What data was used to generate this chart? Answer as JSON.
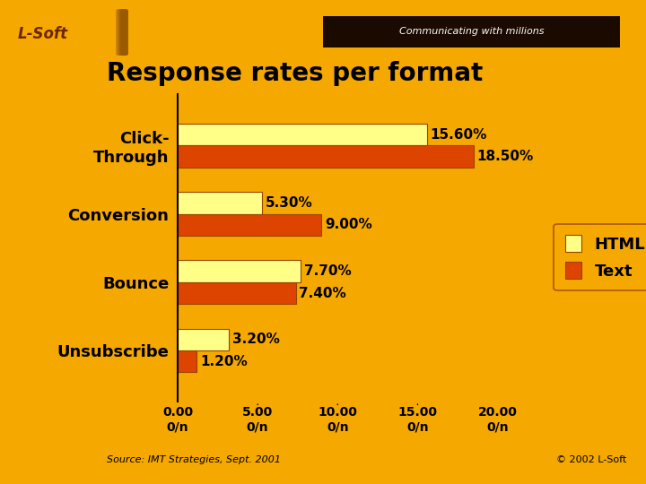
{
  "title": "Response rates per format",
  "categories": [
    "Click-\nThrough",
    "Conversion",
    "Bounce",
    "Unsubscribe"
  ],
  "html_values": [
    15.6,
    5.3,
    7.7,
    3.2
  ],
  "text_values": [
    18.5,
    9.0,
    7.4,
    1.2
  ],
  "html_labels": [
    "15.60%",
    "5.30%",
    "7.70%",
    "3.20%"
  ],
  "text_labels": [
    "18.50%",
    "9.00%",
    "7.40%",
    "1.20%"
  ],
  "html_color": "#FFFF88",
  "text_color": "#DD4400",
  "bg_color": "#F5A800",
  "bar_edge_color": "#994400",
  "xlim": [
    0,
    21
  ],
  "xticks": [
    0.0,
    5.0,
    10.0,
    15.0,
    20.0
  ],
  "xtick_labels": [
    "0.00",
    "5.00",
    "10.00",
    "15.00",
    "20.00"
  ],
  "xtick_sublabels": [
    "0/n",
    "0/n",
    "0/n",
    "0/n",
    "0/n"
  ],
  "source_text": "Source: IMT Strategies, Sept. 2001",
  "copyright_text": "© 2002 L-Soft",
  "legend_html": "HTML",
  "legend_text": "Text",
  "title_fontsize": 20,
  "label_fontsize": 13,
  "bar_height": 0.32,
  "annotation_fontsize": 11,
  "header_color": "#C87010",
  "header_dark_color": "#5A2A00",
  "left_strip_color": "#A06010",
  "comm_text": "Communicating with millions",
  "lsoft_text": "L-Soft"
}
